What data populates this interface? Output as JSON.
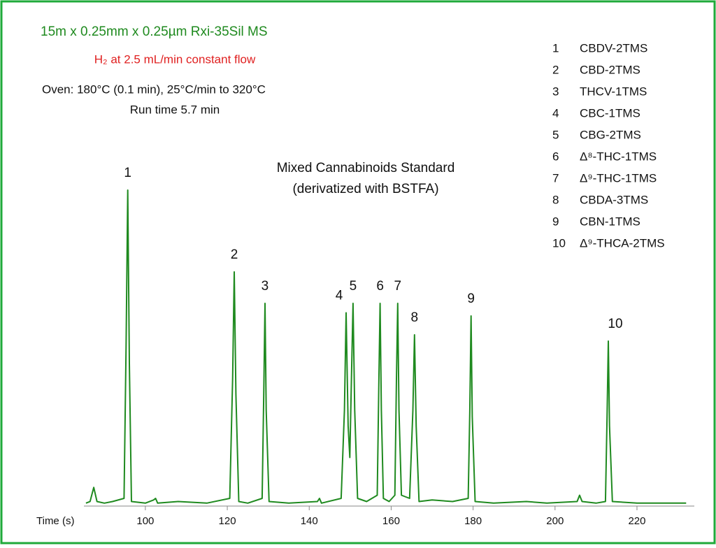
{
  "chart_data": {
    "type": "line",
    "method": [
      "15m x 0.25mm x 0.25µm Rxi-35Sil MS",
      "H₂ at 2.5 mL/min constant flow",
      "Oven: 180°C (0.1 min), 25°C/min to 320°C",
      "Run time 5.7 min"
    ],
    "title_lines": [
      "Mixed Cannabinoids Standard",
      "(derivatized with BSTFA)"
    ],
    "x_label": "Time (s)",
    "xlim": [
      85,
      234
    ],
    "xticks": [
      100,
      120,
      140,
      160,
      180,
      200,
      220
    ],
    "ylim": [
      0,
      100
    ],
    "color": "#1f8a1f",
    "x": [
      85.5,
      86.5,
      87.4,
      88.2,
      90,
      92,
      94.8,
      95.3,
      95.7,
      96.1,
      96.6,
      100,
      102,
      102.5,
      103,
      108,
      115,
      120.6,
      121.3,
      121.7,
      122.1,
      122.8,
      125,
      128.5,
      128.9,
      129.2,
      129.5,
      130.2,
      135,
      142,
      142.5,
      143,
      147.8,
      148.6,
      149.0,
      149.5,
      149.9,
      150.3,
      150.7,
      151.1,
      151.8,
      154,
      156.6,
      157.0,
      157.3,
      157.6,
      158.1,
      159.5,
      160.9,
      161.3,
      161.6,
      161.9,
      162.5,
      164.5,
      165.3,
      165.7,
      166.1,
      166.8,
      170,
      175,
      178.8,
      179.2,
      179.5,
      179.8,
      180.5,
      185,
      193,
      198,
      205.4,
      206,
      206.6,
      210,
      212.3,
      212.7,
      213,
      213.3,
      214,
      220,
      226,
      232
    ],
    "values": [
      0.5,
      1,
      5.5,
      1,
      0.5,
      1,
      2,
      50,
      100,
      45,
      1,
      0.5,
      1.5,
      2,
      0.5,
      1,
      0.5,
      2,
      40,
      74,
      35,
      1,
      0.5,
      2,
      35,
      64,
      30,
      1,
      0.5,
      1,
      2,
      0.5,
      2,
      30,
      61,
      25,
      15,
      40,
      64,
      30,
      2,
      1,
      3,
      40,
      64,
      30,
      2,
      1,
      3,
      40,
      64,
      30,
      3,
      2,
      30,
      54,
      25,
      1,
      1.5,
      1,
      2,
      30,
      60,
      28,
      1,
      0.5,
      1,
      0.5,
      1,
      3,
      1,
      0.5,
      1,
      28,
      52,
      25,
      1,
      0.5,
      0.5,
      0.5
    ],
    "peaks": [
      {
        "number": "1",
        "compound": "CBDV-2TMS"
      },
      {
        "number": "2",
        "compound": "CBD-2TMS"
      },
      {
        "number": "3",
        "compound": "THCV-1TMS"
      },
      {
        "number": "4",
        "compound": "CBC-1TMS"
      },
      {
        "number": "5",
        "compound": "CBG-2TMS"
      },
      {
        "number": "6",
        "compound": "Δ⁸-THC-1TMS"
      },
      {
        "number": "7",
        "compound": "Δ⁹-THC-1TMS"
      },
      {
        "number": "8",
        "compound": "CBDA-3TMS"
      },
      {
        "number": "9",
        "compound": "CBN-1TMS"
      },
      {
        "number": "10",
        "compound": "Δ⁹-THCA-2TMS"
      }
    ]
  }
}
